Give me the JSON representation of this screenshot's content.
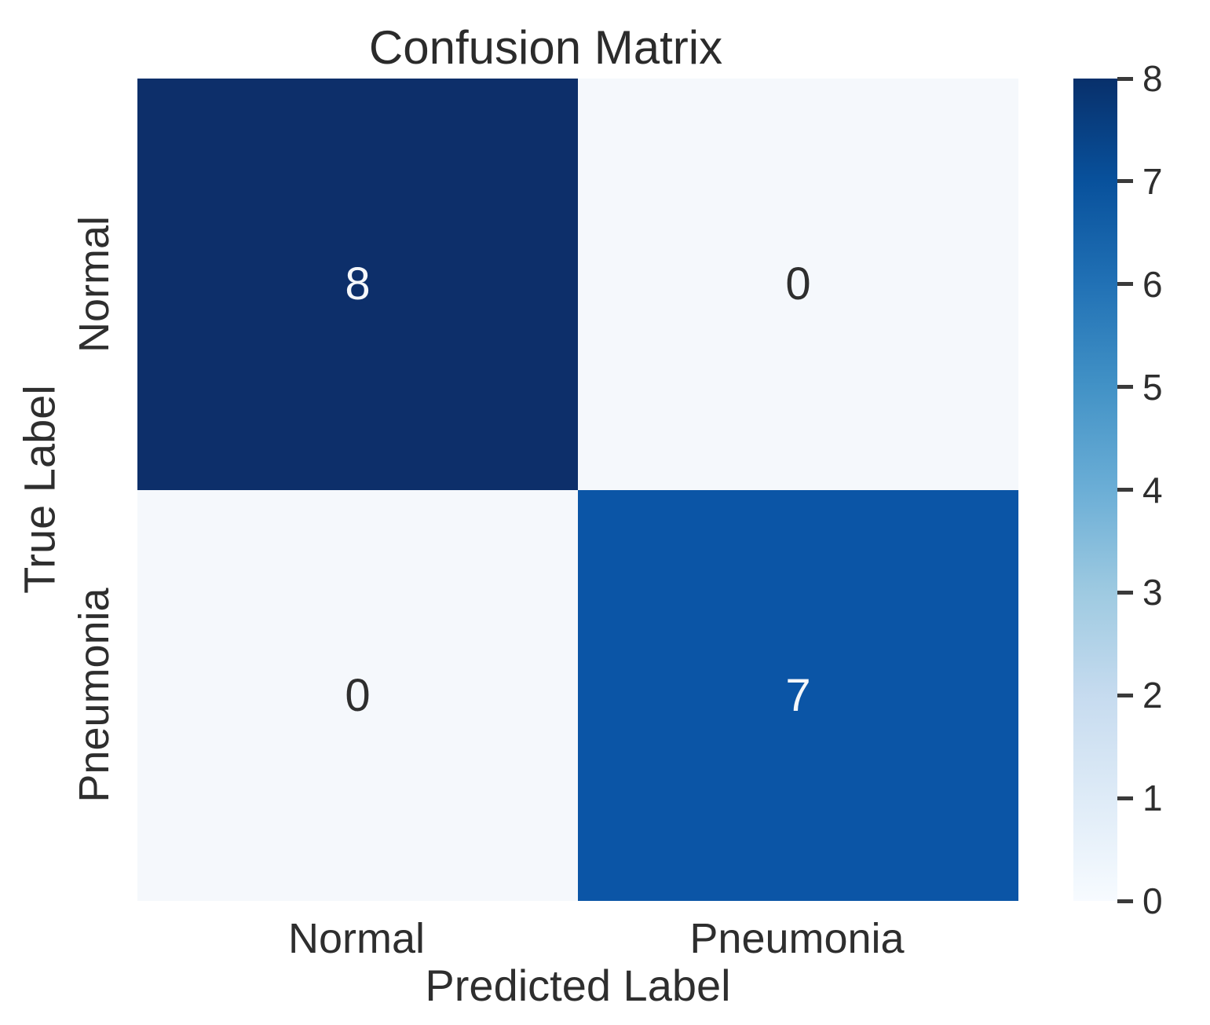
{
  "chart_data": {
    "type": "heatmap",
    "title": "Confusion Matrix",
    "xlabel": "Predicted Label",
    "ylabel": "True Label",
    "x_categories": [
      "Normal",
      "Pneumonia"
    ],
    "y_categories": [
      "Normal",
      "Pneumonia"
    ],
    "values": [
      [
        8,
        0
      ],
      [
        0,
        7
      ]
    ],
    "vmin": 0,
    "vmax": 8,
    "colormap": "Blues",
    "grid": false,
    "legend_position": "right-colorbar",
    "cells": [
      {
        "row": "Normal",
        "col": "Normal",
        "value": "8",
        "bg": "#0d2f6a",
        "fg": "#f5f7fa"
      },
      {
        "row": "Normal",
        "col": "Pneumonia",
        "value": "0",
        "bg": "#f5f8fc",
        "fg": "#2e2e2e"
      },
      {
        "row": "Pneumonia",
        "col": "Normal",
        "value": "0",
        "bg": "#f5f8fc",
        "fg": "#2e2e2e"
      },
      {
        "row": "Pneumonia",
        "col": "Pneumonia",
        "value": "7",
        "bg": "#0b55a6",
        "fg": "#f5f7fa"
      }
    ],
    "colorbar": {
      "ticks": [
        "8",
        "7",
        "6",
        "5",
        "4",
        "3",
        "2",
        "1",
        "0"
      ],
      "gradient_bottom_to_top": [
        "#f7fbff",
        "#deebf7",
        "#c6dbef",
        "#9ecae1",
        "#6baed6",
        "#4292c6",
        "#2171b5",
        "#08519c",
        "#08306b"
      ]
    }
  },
  "colors": {
    "title_text": "#2b2b2b",
    "axis_text": "#2e2e2e",
    "tick_mark": "#3a3a3a",
    "background": "#ffffff"
  }
}
